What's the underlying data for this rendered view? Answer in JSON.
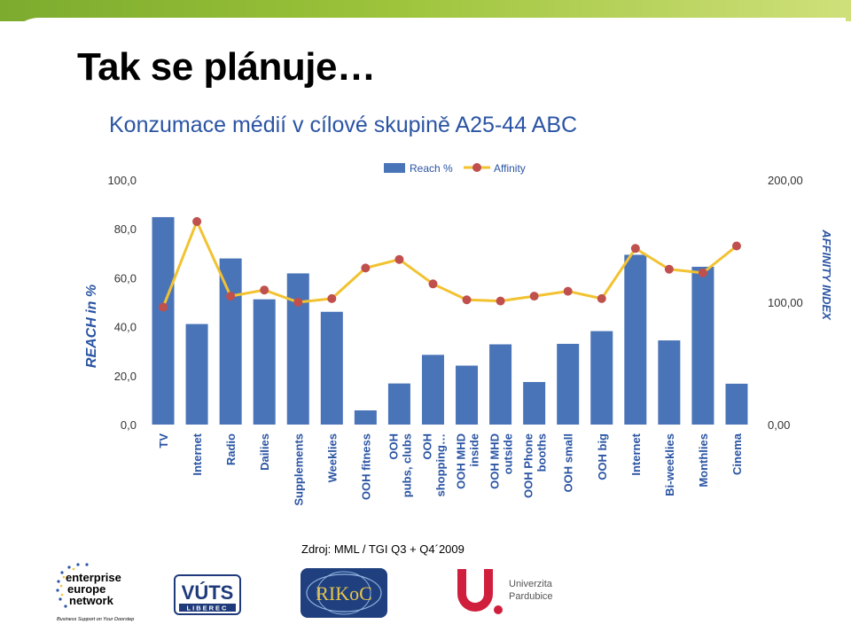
{
  "page": {
    "title": "Tak se plánuje…",
    "subtitle": "Konzumace médií v cílové skupině A25-44 ABC",
    "source": "Zdroj: MML / TGI Q3 + Q4´2009"
  },
  "logos": {
    "een": {
      "line1": "enterprise",
      "line2": "europe",
      "line3": "network",
      "tagline": "Business Support on Your Doorstep"
    },
    "vuts": {
      "name": "VÚTS",
      "city": "LIBEREC"
    },
    "rikoc": {
      "name": "RIKoC"
    },
    "upa": {
      "line1": "Univerzita",
      "line2": "Pardubice"
    }
  },
  "colors": {
    "bar": "#4a74b8",
    "line": "#f2c230",
    "marker": "#c0504d",
    "title": "#2a54a3",
    "accent": "#8bb736"
  },
  "chart_data": {
    "type": "bar",
    "categories": [
      "TV",
      "Internet",
      "Radio",
      "Dailies",
      "Supplements",
      "Weeklies",
      "OOH fitness",
      "OOH pubs, clubs",
      "OOH shopping…",
      "OOH MHD inside",
      "OOH MHD outside",
      "OOH Phone booths",
      "OOH small",
      "OOH big",
      "Internet",
      "Bi-weeklies",
      "Monthlies",
      "Cinema"
    ],
    "tick_labels": [
      [
        "TV"
      ],
      [
        "Internet"
      ],
      [
        "Radio"
      ],
      [
        "Dailies"
      ],
      [
        "Supplements"
      ],
      [
        "Weeklies"
      ],
      [
        "OOH fitness"
      ],
      [
        "OOH",
        "pubs, clubs"
      ],
      [
        "OOH",
        "shopping…"
      ],
      [
        "OOH MHD",
        "inside"
      ],
      [
        "OOH MHD",
        "outside"
      ],
      [
        "OOH Phone",
        "booths"
      ],
      [
        "OOH small"
      ],
      [
        "OOH big"
      ],
      [
        "Internet"
      ],
      [
        "Bi-weeklies"
      ],
      [
        "Monthlies"
      ],
      [
        "Cinema"
      ]
    ],
    "series": [
      {
        "name": "Reach %",
        "type": "bar",
        "axis": "left",
        "values": [
          84.8,
          41.1,
          67.9,
          51.2,
          61.8,
          46.1,
          5.8,
          16.8,
          28.5,
          24.1,
          32.8,
          17.4,
          33.0,
          38.2,
          69.4,
          34.4,
          64.5,
          16.7
        ]
      },
      {
        "name": "Affinity",
        "type": "line",
        "axis": "right",
        "values": [
          96,
          166,
          105,
          110,
          100,
          103,
          128,
          135,
          115,
          102,
          101,
          105,
          109,
          103,
          144,
          127,
          124,
          146
        ]
      }
    ],
    "y_left": {
      "label": "REACH in  %",
      "min": 0,
      "max": 100,
      "ticks": [
        "0,0",
        "20,0",
        "40,0",
        "60,0",
        "80,0",
        "100,0"
      ]
    },
    "y_right": {
      "label": "AFFINITY INDEX",
      "min": 0,
      "max": 200,
      "ticks": [
        "0,00",
        "100,00",
        "200,00"
      ]
    },
    "legend_position": "top-center",
    "grid": false
  }
}
